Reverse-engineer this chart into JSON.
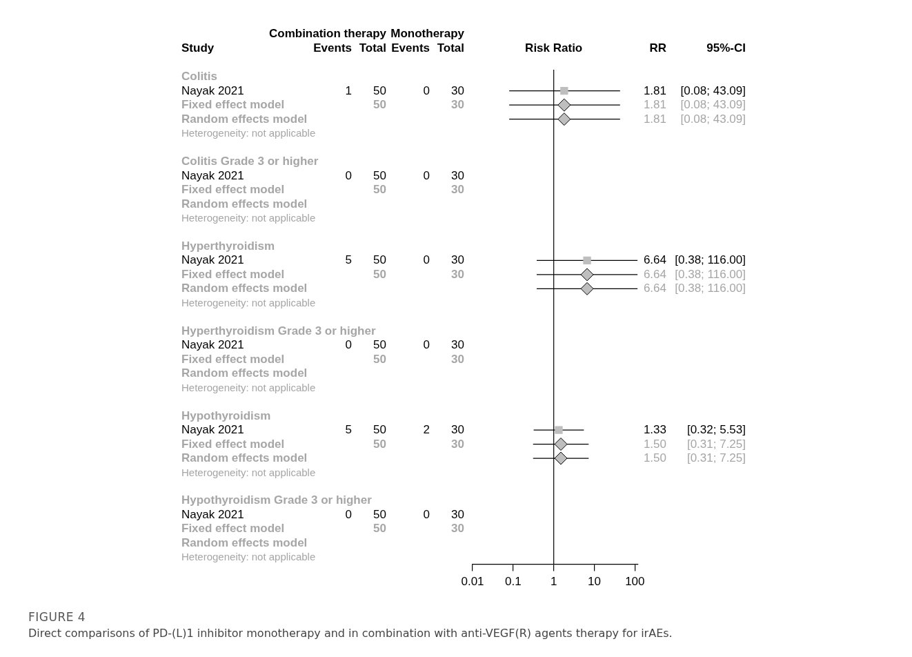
{
  "chart_data": [
    {
      "type": "other",
      "ylabel": "Study",
      "data_labels": true,
      "annotations": [
        "Combination therapy",
        "Monotherapy"
      ],
      "categories": [
        "Colitis",
        "Nayak 2021",
        "Fixed effect model",
        "Random effects model",
        "Heterogeneity: not applicable",
        null,
        "Colitis Grade 3 or higher",
        "Nayak 2021",
        "Fixed effect model",
        "Random effects model",
        "Heterogeneity: not applicable",
        null,
        "Hyperthyroidism",
        "Nayak 2021",
        "Fixed effect model",
        "Random effects model",
        "Heterogeneity: not applicable",
        null,
        "Hyperthyroidism Grade 3 or higher",
        "Nayak 2021",
        "Fixed effect model",
        "Random effects model",
        "Heterogeneity: not applicable",
        null,
        "Hypothyroidism",
        "Nayak 2021",
        "Fixed effect model",
        "Random effects model",
        "Heterogeneity: not applicable",
        null,
        "Hypothyroidism Grade 3 or higher",
        "Nayak 2021",
        "Fixed effect model",
        "Random effects model",
        "Heterogeneity: not applicable"
      ],
      "series": [
        {
          "name": "Events",
          "values": [
            null,
            1,
            null,
            null,
            null,
            null,
            null,
            0,
            null,
            null,
            null,
            null,
            null,
            5,
            null,
            null,
            null,
            null,
            null,
            0,
            null,
            null,
            null,
            null,
            null,
            5,
            null,
            null,
            null,
            null,
            null,
            0,
            null,
            null,
            null
          ]
        },
        {
          "name": "Total",
          "values": [
            null,
            50,
            50,
            null,
            null,
            null,
            null,
            50,
            50,
            null,
            null,
            null,
            null,
            50,
            50,
            null,
            null,
            null,
            null,
            50,
            50,
            null,
            null,
            null,
            null,
            50,
            50,
            null,
            null,
            null,
            null,
            50,
            50,
            null,
            null
          ]
        },
        {
          "name": "Events",
          "values": [
            null,
            0,
            null,
            null,
            null,
            null,
            null,
            0,
            null,
            null,
            null,
            null,
            null,
            0,
            null,
            null,
            null,
            null,
            null,
            0,
            null,
            null,
            null,
            null,
            null,
            2,
            null,
            null,
            null,
            null,
            null,
            0,
            null,
            null,
            null
          ]
        },
        {
          "name": "Total",
          "values": [
            null,
            30,
            30,
            null,
            null,
            null,
            null,
            30,
            30,
            null,
            null,
            null,
            null,
            30,
            30,
            null,
            null,
            null,
            null,
            30,
            30,
            null,
            null,
            null,
            null,
            30,
            30,
            null,
            null,
            null,
            null,
            30,
            30,
            null,
            null
          ]
        }
      ]
    },
    {
      "type": "scatter",
      "title": "Risk Ratio",
      "orientation": "horizontal",
      "log": "x",
      "grid": false,
      "tick_labels": "x",
      "xlim": [
        0.01,
        120
      ],
      "xticks": [
        0.01,
        0.1,
        1,
        10,
        100
      ],
      "ref_lines": [
        {
          "axis": "x",
          "value": 1
        }
      ],
      "annotations": [
        "FIGURE 4",
        "Direct comparisons of PD-(L)1 inhibitor monotherapy and in combination with anti-VEGF(R) agents therapy for irAEs."
      ],
      "categories": [
        null,
        null,
        null,
        null,
        null,
        null,
        null,
        null,
        null,
        null,
        null,
        null,
        null,
        null,
        null,
        null,
        null,
        null,
        null,
        null,
        null,
        null,
        null,
        null,
        null,
        null,
        null,
        null,
        null,
        null,
        null,
        null,
        null,
        null,
        null
      ],
      "series": [
        {
          "marker": "square",
          "color": "#bebebe",
          "values": [
            null,
            1.81,
            null,
            null,
            null,
            null,
            null,
            null,
            null,
            null,
            null,
            null,
            null,
            6.64,
            null,
            null,
            null,
            null,
            null,
            null,
            null,
            null,
            null,
            null,
            null,
            1.33,
            null,
            null,
            null,
            null,
            null,
            null,
            null,
            null,
            null
          ],
          "errors": [
            null,
            [
              0.08,
              43.09
            ],
            null,
            null,
            null,
            null,
            null,
            null,
            null,
            null,
            null,
            null,
            null,
            [
              0.38,
              116.0
            ],
            null,
            null,
            null,
            null,
            null,
            null,
            null,
            null,
            null,
            null,
            null,
            [
              0.32,
              5.53
            ],
            null,
            null,
            null,
            null,
            null,
            null,
            null,
            null,
            null
          ]
        },
        {
          "marker": "diamond",
          "color": "#bebebe",
          "values": [
            null,
            null,
            1.81,
            null,
            null,
            null,
            null,
            null,
            null,
            null,
            null,
            null,
            null,
            null,
            6.64,
            null,
            null,
            null,
            null,
            null,
            null,
            null,
            null,
            null,
            null,
            null,
            1.5,
            null,
            null,
            null,
            null,
            null,
            null,
            null,
            null
          ],
          "errors": [
            null,
            null,
            [
              0.08,
              43.09
            ],
            null,
            null,
            null,
            null,
            null,
            null,
            null,
            null,
            null,
            null,
            null,
            [
              0.38,
              116.0
            ],
            null,
            null,
            null,
            null,
            null,
            null,
            null,
            null,
            null,
            null,
            null,
            [
              0.31,
              7.25
            ],
            null,
            null,
            null,
            null,
            null,
            null,
            null,
            null
          ]
        },
        {
          "marker": "diamond",
          "color": "#bebebe",
          "values": [
            null,
            null,
            null,
            1.81,
            null,
            null,
            null,
            null,
            null,
            null,
            null,
            null,
            null,
            null,
            null,
            6.64,
            null,
            null,
            null,
            null,
            null,
            null,
            null,
            null,
            null,
            null,
            null,
            1.5,
            null,
            null,
            null,
            null,
            null,
            null,
            null
          ],
          "errors": [
            null,
            null,
            null,
            [
              0.08,
              43.09
            ],
            null,
            null,
            null,
            null,
            null,
            null,
            null,
            null,
            null,
            null,
            null,
            [
              0.38,
              116.0
            ],
            null,
            null,
            null,
            null,
            null,
            null,
            null,
            null,
            null,
            null,
            null,
            [
              0.31,
              7.25
            ],
            null,
            null,
            null,
            null,
            null,
            null,
            null
          ]
        }
      ]
    },
    {
      "type": "other",
      "categories": [
        null,
        null,
        null,
        null,
        null,
        null,
        null,
        null,
        null,
        null,
        null,
        null,
        null,
        null,
        null,
        null,
        null,
        null,
        null,
        null,
        null,
        null,
        null,
        null,
        null,
        null,
        null,
        null,
        null,
        null,
        null,
        null,
        null,
        null,
        null
      ],
      "series": [
        {
          "name": "RR",
          "values": [
            null,
            null,
            null,
            null,
            null,
            null,
            null,
            null,
            null,
            null,
            null,
            null,
            null,
            null,
            null,
            null,
            null,
            null,
            null,
            null,
            null,
            null,
            null,
            null,
            null,
            null,
            null,
            null,
            null,
            null,
            null,
            null,
            null,
            null,
            null
          ],
          "value_labels": [
            null,
            "1.81",
            "1.81",
            "1.81",
            null,
            null,
            null,
            null,
            null,
            null,
            null,
            null,
            null,
            "6.64",
            "6.64",
            "6.64",
            null,
            null,
            null,
            null,
            null,
            null,
            null,
            null,
            null,
            "1.33",
            "1.50",
            "1.50",
            null,
            null,
            null,
            null,
            null,
            null,
            null
          ]
        },
        {
          "name": "95%-CI",
          "values": [
            null,
            null,
            null,
            null,
            null,
            null,
            null,
            null,
            null,
            null,
            null,
            null,
            null,
            null,
            null,
            null,
            null,
            null,
            null,
            null,
            null,
            null,
            null,
            null,
            null,
            null,
            null,
            null,
            null,
            null,
            null,
            null,
            null,
            null,
            null
          ],
          "value_labels": [
            null,
            "[0.08; 43.09]",
            "[0.08; 43.09]",
            "[0.08; 43.09]",
            null,
            null,
            null,
            null,
            null,
            null,
            null,
            null,
            null,
            "[0.38; 116.00]",
            "[0.38; 116.00]",
            "[0.38; 116.00]",
            null,
            null,
            null,
            null,
            null,
            null,
            null,
            null,
            null,
            "[0.32; 5.53]",
            "[0.31; 7.25]",
            "[0.31; 7.25]",
            null,
            null,
            null,
            null,
            null,
            null,
            null
          ]
        }
      ]
    }
  ]
}
